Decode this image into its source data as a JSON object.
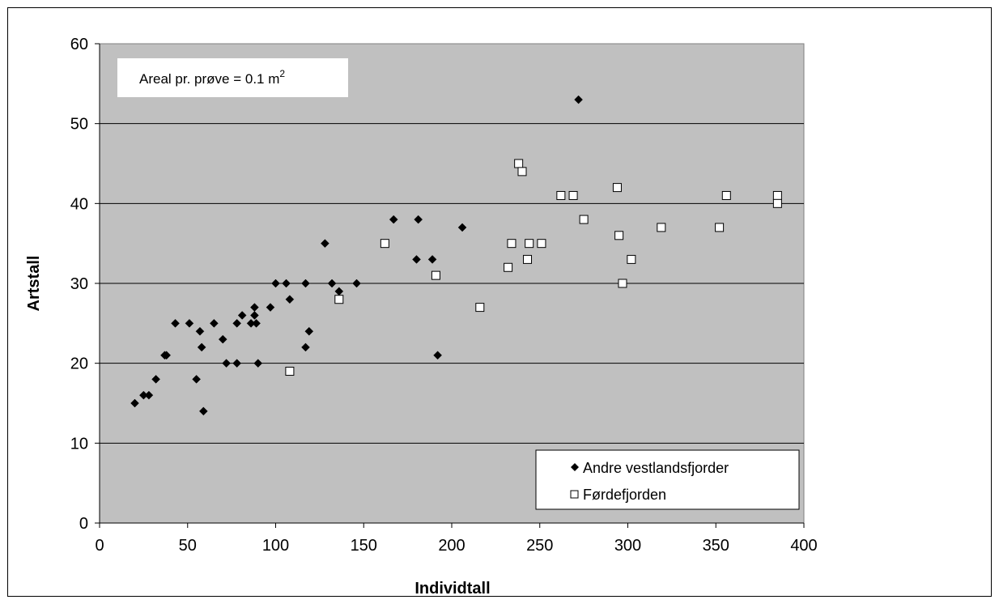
{
  "chart_data": {
    "type": "scatter",
    "xlabel": "Individtall",
    "ylabel": "Artstall",
    "xlim": [
      0,
      400
    ],
    "ylim": [
      0,
      60
    ],
    "x_ticks": [
      "0",
      "50",
      "100",
      "150",
      "200",
      "250",
      "300",
      "350",
      "400"
    ],
    "y_ticks": [
      "0",
      "10",
      "20",
      "30",
      "40",
      "50",
      "60"
    ],
    "grid": "horizontal",
    "plot_background": "#c0c0c0",
    "annotation": {
      "text": "Areal pr. prøve = 0.1 m",
      "superscript": "2"
    },
    "legend_position": "bottom-right",
    "series": [
      {
        "name": "Andre vestlandsfjorder",
        "marker": "diamond",
        "color": "#000000",
        "points": [
          [
            20,
            15
          ],
          [
            25,
            16
          ],
          [
            28,
            16
          ],
          [
            32,
            18
          ],
          [
            37,
            21
          ],
          [
            38,
            21
          ],
          [
            43,
            25
          ],
          [
            51,
            25
          ],
          [
            55,
            18
          ],
          [
            57,
            24
          ],
          [
            58,
            22
          ],
          [
            59,
            14
          ],
          [
            65,
            25
          ],
          [
            70,
            23
          ],
          [
            72,
            20
          ],
          [
            78,
            20
          ],
          [
            78,
            25
          ],
          [
            81,
            26
          ],
          [
            86,
            25
          ],
          [
            88,
            26
          ],
          [
            88,
            27
          ],
          [
            89,
            25
          ],
          [
            90,
            20
          ],
          [
            97,
            27
          ],
          [
            100,
            30
          ],
          [
            106,
            30
          ],
          [
            108,
            28
          ],
          [
            117,
            30
          ],
          [
            117,
            22
          ],
          [
            119,
            24
          ],
          [
            128,
            35
          ],
          [
            132,
            30
          ],
          [
            136,
            29
          ],
          [
            146,
            30
          ],
          [
            167,
            38
          ],
          [
            180,
            33
          ],
          [
            181,
            38
          ],
          [
            189,
            33
          ],
          [
            192,
            21
          ],
          [
            206,
            37
          ],
          [
            272,
            53
          ]
        ]
      },
      {
        "name": "Førdefjorden",
        "marker": "square",
        "color": "#ffffff",
        "points": [
          [
            108,
            19
          ],
          [
            136,
            28
          ],
          [
            162,
            35
          ],
          [
            191,
            31
          ],
          [
            216,
            27
          ],
          [
            232,
            32
          ],
          [
            234,
            35
          ],
          [
            238,
            45
          ],
          [
            240,
            44
          ],
          [
            243,
            33
          ],
          [
            244,
            35
          ],
          [
            251,
            35
          ],
          [
            262,
            41
          ],
          [
            269,
            41
          ],
          [
            275,
            38
          ],
          [
            294,
            42
          ],
          [
            295,
            36
          ],
          [
            297,
            30
          ],
          [
            302,
            33
          ],
          [
            319,
            37
          ],
          [
            352,
            37
          ],
          [
            356,
            41
          ],
          [
            385,
            41
          ],
          [
            385,
            40
          ]
        ]
      }
    ]
  }
}
